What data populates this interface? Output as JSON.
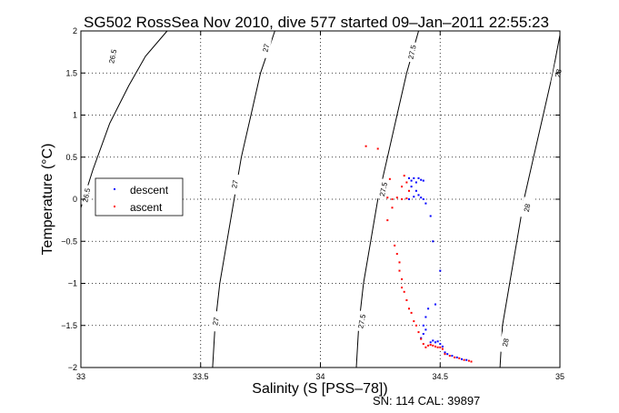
{
  "chart_data": {
    "type": "scatter",
    "title": "SG502 RossSea Nov 2010, dive 577 started 09–Jan–2011 22:55:23",
    "xlabel": "Salinity (S [PSS–78])",
    "ylabel": "Temperature (°C)",
    "footer": "SN: 114  CAL: 39897",
    "xlim": [
      33,
      35
    ],
    "ylim": [
      -2,
      2
    ],
    "xticks": [
      33,
      33.5,
      34,
      34.5,
      35
    ],
    "xtick_labels": [
      "33",
      "33.5",
      "34",
      "34.5",
      "35"
    ],
    "yticks": [
      -2,
      -1.5,
      -1,
      -0.5,
      0,
      0.5,
      1,
      1.5,
      2
    ],
    "ytick_labels": [
      "−2",
      "−1.5",
      "−1",
      "−0.5",
      "0",
      "0.5",
      "1",
      "1.5",
      "2"
    ],
    "grid": true,
    "legend_position": "left",
    "density_contours": [
      {
        "label": "26.5",
        "points": [
          [
            33.0,
            -0.1
          ],
          [
            33.05,
            0.35
          ],
          [
            33.12,
            0.9
          ],
          [
            33.2,
            1.35
          ],
          [
            33.27,
            1.7
          ],
          [
            33.36,
            2.0
          ]
        ],
        "labels_at": [
          {
            "text": "26.5",
            "x": 33.02,
            "y": 0.05
          },
          {
            "text": "26.5",
            "x": 33.13,
            "y": 1.7
          }
        ]
      },
      {
        "label": "27",
        "points": [
          [
            33.55,
            -2.0
          ],
          [
            33.56,
            -1.5
          ],
          [
            33.58,
            -1.0
          ],
          [
            33.61,
            -0.5
          ],
          [
            33.64,
            0.0
          ],
          [
            33.67,
            0.5
          ],
          [
            33.71,
            1.0
          ],
          [
            33.75,
            1.5
          ],
          [
            33.81,
            2.0
          ]
        ],
        "labels_at": [
          {
            "text": "27",
            "x": 33.56,
            "y": -1.45
          },
          {
            "text": "27",
            "x": 33.64,
            "y": 0.18
          },
          {
            "text": "27",
            "x": 33.77,
            "y": 1.8
          }
        ]
      },
      {
        "label": "27.5",
        "points": [
          [
            34.15,
            -2.0
          ],
          [
            34.16,
            -1.5
          ],
          [
            34.18,
            -1.0
          ],
          [
            34.21,
            -0.5
          ],
          [
            34.24,
            0.0
          ],
          [
            34.28,
            0.5
          ],
          [
            34.32,
            1.0
          ],
          [
            34.36,
            1.5
          ],
          [
            34.41,
            2.0
          ]
        ],
        "labels_at": [
          {
            "text": "27.5",
            "x": 34.17,
            "y": -1.45
          },
          {
            "text": "27.5",
            "x": 34.26,
            "y": 0.12
          },
          {
            "text": "27.5",
            "x": 34.38,
            "y": 1.75
          }
        ]
      },
      {
        "label": "28",
        "points": [
          [
            34.75,
            -2.0
          ],
          [
            34.76,
            -1.5
          ],
          [
            34.79,
            -1.0
          ],
          [
            34.82,
            -0.5
          ],
          [
            34.85,
            0.0
          ],
          [
            34.89,
            0.5
          ],
          [
            34.93,
            1.0
          ],
          [
            34.97,
            1.5
          ],
          [
            35.0,
            1.95
          ]
        ],
        "labels_at": [
          {
            "text": "28",
            "x": 34.77,
            "y": -1.7
          },
          {
            "text": "28",
            "x": 34.86,
            "y": -0.1
          },
          {
            "text": "28",
            "x": 34.99,
            "y": 1.5
          }
        ]
      }
    ],
    "series": [
      {
        "name": "descent",
        "color": "#0000ff",
        "points": [
          [
            34.37,
            0.25
          ],
          [
            34.38,
            0.22
          ],
          [
            34.39,
            0.25
          ],
          [
            34.4,
            0.2
          ],
          [
            34.41,
            0.25
          ],
          [
            34.42,
            0.23
          ],
          [
            34.43,
            0.22
          ],
          [
            34.38,
            0.15
          ],
          [
            34.4,
            0.1
          ],
          [
            34.41,
            0.05
          ],
          [
            34.42,
            0.02
          ],
          [
            34.43,
            0.0
          ],
          [
            34.39,
            0.03
          ],
          [
            34.37,
            0.0
          ],
          [
            34.44,
            -0.05
          ],
          [
            34.46,
            -0.2
          ],
          [
            34.47,
            -0.5
          ],
          [
            34.5,
            -0.85
          ],
          [
            34.48,
            -1.25
          ],
          [
            34.45,
            -1.3
          ],
          [
            34.44,
            -1.4
          ],
          [
            34.43,
            -1.5
          ],
          [
            34.44,
            -1.55
          ],
          [
            34.43,
            -1.6
          ],
          [
            34.42,
            -1.65
          ],
          [
            34.46,
            -1.7
          ],
          [
            34.47,
            -1.68
          ],
          [
            34.48,
            -1.7
          ],
          [
            34.49,
            -1.69
          ],
          [
            34.5,
            -1.72
          ],
          [
            34.51,
            -1.75
          ],
          [
            34.52,
            -1.82
          ],
          [
            34.53,
            -1.84
          ],
          [
            34.55,
            -1.86
          ],
          [
            34.57,
            -1.88
          ],
          [
            34.59,
            -1.9
          ],
          [
            34.61,
            -1.91
          ],
          [
            34.63,
            -1.93
          ]
        ]
      },
      {
        "name": "ascent",
        "color": "#ff0000",
        "points": [
          [
            34.19,
            0.63
          ],
          [
            34.24,
            0.6
          ],
          [
            34.29,
            0.24
          ],
          [
            34.28,
            0.02
          ],
          [
            34.3,
            0.0
          ],
          [
            34.32,
            0.02
          ],
          [
            34.34,
            0.0
          ],
          [
            34.36,
            0.01
          ],
          [
            34.37,
            0.1
          ],
          [
            34.34,
            0.15
          ],
          [
            34.36,
            0.2
          ],
          [
            34.35,
            0.28
          ],
          [
            34.3,
            -0.1
          ],
          [
            34.28,
            -0.25
          ],
          [
            34.31,
            -0.55
          ],
          [
            34.32,
            -0.65
          ],
          [
            34.33,
            -0.75
          ],
          [
            34.33,
            -0.85
          ],
          [
            34.34,
            -0.95
          ],
          [
            34.34,
            -1.05
          ],
          [
            34.35,
            -1.1
          ],
          [
            34.36,
            -1.2
          ],
          [
            34.37,
            -1.3
          ],
          [
            34.38,
            -1.35
          ],
          [
            34.39,
            -1.45
          ],
          [
            34.4,
            -1.5
          ],
          [
            34.41,
            -1.58
          ],
          [
            34.42,
            -1.66
          ],
          [
            34.43,
            -1.72
          ],
          [
            34.44,
            -1.76
          ],
          [
            34.45,
            -1.74
          ],
          [
            34.46,
            -1.73
          ],
          [
            34.47,
            -1.74
          ],
          [
            34.48,
            -1.75
          ],
          [
            34.49,
            -1.76
          ],
          [
            34.5,
            -1.76
          ],
          [
            34.51,
            -1.78
          ],
          [
            34.52,
            -1.84
          ],
          [
            34.54,
            -1.86
          ],
          [
            34.56,
            -1.88
          ],
          [
            34.58,
            -1.89
          ],
          [
            34.6,
            -1.91
          ],
          [
            34.62,
            -1.92
          ],
          [
            34.63,
            -1.93
          ]
        ]
      }
    ]
  }
}
